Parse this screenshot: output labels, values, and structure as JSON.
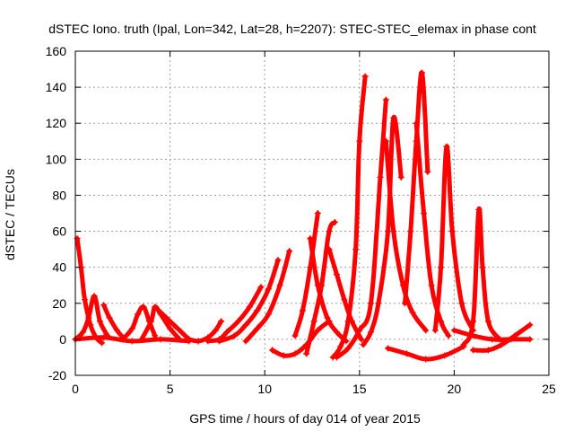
{
  "chart_data": {
    "type": "scatter",
    "title": "dSTEC Iono. truth (Ipal, Lon=342, Lat=28, h=2207): STEC-STEC_elemax in phase cont",
    "xlabel": "GPS time / hours of day 014 of year 2015",
    "ylabel": "dSTEC  / TECUs",
    "xlim": [
      0,
      25
    ],
    "ylim": [
      -20,
      160
    ],
    "xticks": [
      "0",
      "5",
      "10",
      "15",
      "20",
      "25"
    ],
    "yticks": [
      "-20",
      "0",
      "20",
      "40",
      "60",
      "80",
      "100",
      "120",
      "140",
      "160"
    ],
    "grid": true,
    "marker": "+",
    "color": "#ff0000",
    "series": [
      {
        "x": [
          0.1,
          0.3,
          0.5,
          0.8,
          1.1,
          1.4
        ],
        "y": [
          56,
          40,
          22,
          8,
          1,
          -2
        ]
      },
      {
        "x": [
          0,
          0.4,
          0.7,
          1.0,
          1.3,
          1.7
        ],
        "y": [
          0,
          4,
          12,
          24,
          10,
          2
        ]
      },
      {
        "x": [
          1.5,
          1.8,
          2.2,
          2.6
        ],
        "y": [
          19,
          12,
          5,
          0
        ]
      },
      {
        "x": [
          2.5,
          3.0,
          3.3,
          3.6,
          3.9,
          4.2
        ],
        "y": [
          0,
          6,
          14,
          18,
          10,
          2
        ]
      },
      {
        "x": [
          3.5,
          4.0,
          4.2,
          4.5,
          5.0,
          5.5
        ],
        "y": [
          0,
          10,
          18,
          14,
          6,
          0
        ]
      },
      {
        "x": [
          4.5,
          4.8,
          5.2,
          5.6,
          6.0
        ],
        "y": [
          15,
          12,
          8,
          4,
          0
        ]
      },
      {
        "x": [
          6.0,
          6.5,
          7.0,
          7.4,
          7.7
        ],
        "y": [
          0,
          -1,
          1,
          5,
          10
        ]
      },
      {
        "x": [
          7.0,
          7.6,
          8.0,
          8.6,
          9.2,
          9.8
        ],
        "y": [
          -1,
          0,
          4,
          10,
          18,
          29
        ]
      },
      {
        "x": [
          7.6,
          8.4,
          9.0,
          9.6,
          10.2,
          10.7
        ],
        "y": [
          -1,
          2,
          8,
          16,
          28,
          44
        ]
      },
      {
        "x": [
          9.0,
          9.6,
          10.2,
          10.8,
          11.3
        ],
        "y": [
          -1,
          6,
          14,
          30,
          49
        ]
      },
      {
        "x": [
          10.4,
          11.0,
          11.6,
          12.2,
          12.8,
          13.4
        ],
        "y": [
          -6,
          -9,
          -8,
          -3,
          5,
          10
        ]
      },
      {
        "x": [
          11.6,
          12.0,
          12.4,
          12.8
        ],
        "y": [
          2,
          16,
          40,
          70
        ]
      },
      {
        "x": [
          12.2,
          12.6,
          13.0,
          13.4,
          13.7
        ],
        "y": [
          -8,
          10,
          30,
          60,
          65
        ]
      },
      {
        "x": [
          12.4,
          12.8,
          13.3,
          13.8,
          14.3
        ],
        "y": [
          56,
          30,
          12,
          4,
          -1
        ]
      },
      {
        "x": [
          13.4,
          13.8,
          14.2,
          14.6,
          15.1
        ],
        "y": [
          50,
          36,
          22,
          10,
          0
        ]
      },
      {
        "x": [
          13.6,
          14.0,
          14.4,
          14.8,
          15.0,
          15.3
        ],
        "y": [
          -10,
          -4,
          10,
          50,
          110,
          146
        ]
      },
      {
        "x": [
          13.8,
          14.4,
          15.0,
          15.6,
          16.1,
          16.4
        ],
        "y": [
          -10,
          -5,
          5,
          20,
          90,
          133
        ]
      },
      {
        "x": [
          15.2,
          15.6,
          16.0,
          16.5,
          16.8,
          17.2
        ],
        "y": [
          -3,
          4,
          20,
          60,
          123,
          90
        ]
      },
      {
        "x": [
          16.4,
          16.8,
          17.3,
          17.8,
          18.5
        ],
        "y": [
          110,
          60,
          30,
          15,
          5
        ]
      },
      {
        "x": [
          17.4,
          17.7,
          18.0,
          18.3,
          18.6
        ],
        "y": [
          20,
          60,
          110,
          148,
          93
        ]
      },
      {
        "x": [
          18.0,
          18.4,
          18.8,
          19.3,
          19.7
        ],
        "y": [
          120,
          70,
          30,
          10,
          2
        ]
      },
      {
        "x": [
          16.5,
          17.5,
          18.5,
          19.5,
          20.5
        ],
        "y": [
          -5,
          -8,
          -11,
          -9,
          -4
        ]
      },
      {
        "x": [
          19.0,
          19.3,
          19.6,
          19.9,
          20.4,
          21.0
        ],
        "y": [
          5,
          40,
          107,
          60,
          20,
          5
        ]
      },
      {
        "x": [
          20.5,
          21.0,
          21.3,
          21.5,
          21.8,
          22.4
        ],
        "y": [
          -3,
          10,
          72,
          40,
          10,
          0
        ]
      },
      {
        "x": [
          21.0,
          21.8,
          22.5,
          23.2,
          24.0
        ],
        "y": [
          -6,
          -6,
          -3,
          2,
          8
        ]
      },
      {
        "x": [
          20.0,
          21.0,
          22.0,
          23.0,
          24.0
        ],
        "y": [
          5,
          2,
          0,
          0,
          0
        ]
      },
      {
        "x": [
          0.0,
          1.5,
          3.0,
          4.5,
          6.0
        ],
        "y": [
          0,
          1,
          -1,
          0,
          -1
        ]
      }
    ]
  }
}
